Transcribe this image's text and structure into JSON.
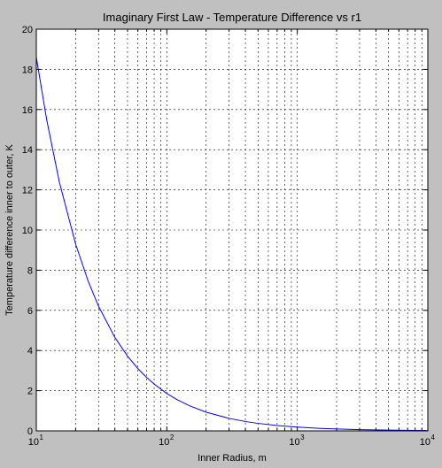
{
  "chart_data": {
    "type": "line",
    "title": "Imaginary First Law - Temperature Difference vs r1",
    "xlabel": "Inner Radius, m",
    "ylabel": "Temperature difference inner to outer, K",
    "x_scale": "log",
    "xlim": [
      10,
      10000
    ],
    "ylim": [
      0,
      20
    ],
    "x_ticks": [
      {
        "value": 10,
        "base": "10",
        "exp": "1"
      },
      {
        "value": 100,
        "base": "10",
        "exp": "2"
      },
      {
        "value": 1000,
        "base": "10",
        "exp": "3"
      },
      {
        "value": 10000,
        "base": "10",
        "exp": "4"
      }
    ],
    "y_ticks": [
      "0",
      "2",
      "4",
      "6",
      "8",
      "10",
      "12",
      "14",
      "16",
      "18",
      "20"
    ],
    "grid": true,
    "grid_style": "dashed",
    "series": [
      {
        "color": "#0000ff",
        "x": [
          10,
          12,
          15,
          20,
          25,
          30,
          40,
          50,
          60,
          70,
          80,
          100,
          120,
          150,
          200,
          300,
          400,
          500,
          700,
          1000,
          1500,
          2000,
          3000,
          5000,
          10000
        ],
        "y": [
          18.6,
          15.5,
          12.4,
          9.3,
          7.44,
          6.2,
          4.65,
          3.72,
          3.1,
          2.66,
          2.33,
          1.86,
          1.55,
          1.24,
          0.93,
          0.62,
          0.465,
          0.372,
          0.266,
          0.186,
          0.124,
          0.093,
          0.062,
          0.037,
          0.019
        ]
      }
    ]
  },
  "colors": {
    "figure_background": "#c0c0c0",
    "axes_background": "#ffffff",
    "axis": "#000000",
    "grid": "#000000",
    "line": "#0000ff"
  }
}
